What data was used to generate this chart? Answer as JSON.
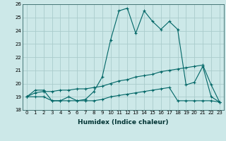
{
  "xlabel": "Humidex (Indice chaleur)",
  "ylabel": "",
  "xlim": [
    -0.5,
    23.5
  ],
  "ylim": [
    18,
    26
  ],
  "xticks": [
    0,
    1,
    2,
    3,
    4,
    5,
    6,
    7,
    8,
    9,
    10,
    11,
    12,
    13,
    14,
    15,
    16,
    17,
    18,
    19,
    20,
    21,
    22,
    23
  ],
  "yticks": [
    18,
    19,
    20,
    21,
    22,
    23,
    24,
    25,
    26
  ],
  "background_color": "#cce8e8",
  "grid_color": "#aacccc",
  "line_color": "#006666",
  "line1_x": [
    0,
    1,
    2,
    3,
    4,
    5,
    6,
    7,
    8,
    9,
    10,
    11,
    12,
    13,
    14,
    15,
    16,
    17,
    18,
    19,
    20,
    21,
    22,
    23
  ],
  "line1_y": [
    19.0,
    19.5,
    19.5,
    18.7,
    18.7,
    19.0,
    18.7,
    18.8,
    19.4,
    20.5,
    23.3,
    25.5,
    25.7,
    23.8,
    25.5,
    24.7,
    24.1,
    24.7,
    24.1,
    19.9,
    20.1,
    21.3,
    19.0,
    18.6
  ],
  "line2_x": [
    0,
    1,
    2,
    3,
    4,
    5,
    6,
    7,
    8,
    9,
    10,
    11,
    12,
    13,
    14,
    15,
    16,
    17,
    18,
    19,
    20,
    21,
    22,
    23
  ],
  "line2_y": [
    19.0,
    19.3,
    19.4,
    19.4,
    19.5,
    19.5,
    19.6,
    19.6,
    19.7,
    19.8,
    20.0,
    20.2,
    20.3,
    20.5,
    20.6,
    20.7,
    20.9,
    21.0,
    21.1,
    21.2,
    21.3,
    21.4,
    19.9,
    18.6
  ],
  "line3_x": [
    0,
    1,
    2,
    3,
    4,
    5,
    6,
    7,
    8,
    9,
    10,
    11,
    12,
    13,
    14,
    15,
    16,
    17,
    18,
    19,
    20,
    21,
    22,
    23
  ],
  "line3_y": [
    19.0,
    19.0,
    19.0,
    18.7,
    18.7,
    18.7,
    18.7,
    18.7,
    18.7,
    18.8,
    19.0,
    19.1,
    19.2,
    19.3,
    19.4,
    19.5,
    19.6,
    19.7,
    18.7,
    18.7,
    18.7,
    18.7,
    18.7,
    18.6
  ],
  "tick_fontsize": 5,
  "xlabel_fontsize": 6.5,
  "xlabel_fontweight": "bold"
}
